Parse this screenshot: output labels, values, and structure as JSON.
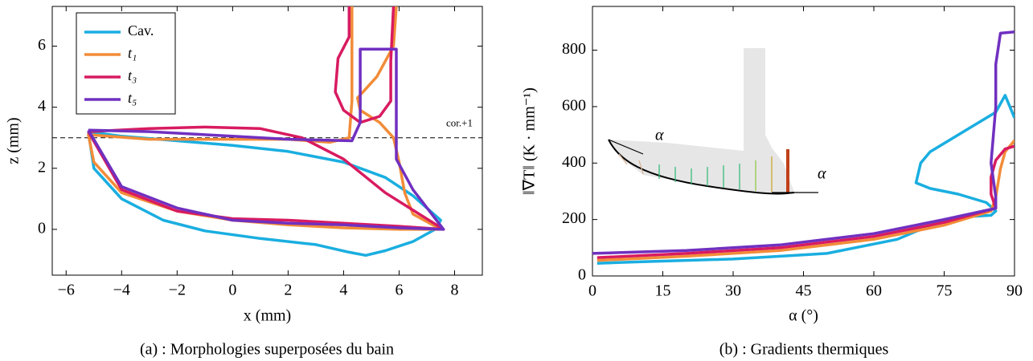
{
  "chart_data": [
    {
      "type": "line",
      "title": "(a) : Morphologies superposées du bain",
      "xlabel": "x (mm)",
      "ylabel": "z (mm)",
      "xlim": [
        -6.5,
        9
      ],
      "ylim": [
        -1.5,
        7.3
      ],
      "xticks": [
        {
          "value": -6,
          "label": "−6"
        },
        {
          "value": -4,
          "label": "−4"
        },
        {
          "value": -2,
          "label": "−2"
        },
        0,
        2,
        4,
        6,
        8
      ],
      "yticks": [
        0,
        2,
        4,
        6
      ],
      "legend": "upper left",
      "reference_line": {
        "y": 3,
        "label": "cor.+1"
      },
      "series": [
        {
          "name": "Cav.",
          "color": "#1aaee0",
          "x": [
            -5.2,
            -4,
            -2,
            0,
            2,
            4,
            5.5,
            6.5,
            7.5,
            7.3,
            6.5,
            5.5,
            4.8,
            4.2,
            3,
            1,
            -1,
            -2.5,
            -4,
            -5,
            -5.2
          ],
          "values": [
            3.2,
            3.05,
            2.9,
            2.75,
            2.55,
            2.2,
            1.7,
            1.1,
            0.3,
            0,
            -0.4,
            -0.7,
            -0.85,
            -0.75,
            -0.5,
            -0.3,
            -0.05,
            0.3,
            1.0,
            2.0,
            3.2
          ]
        },
        {
          "name": "t₁",
          "color": "#f28c38",
          "x": [
            4.3,
            4.3,
            4.2,
            3.5,
            2,
            0,
            -3,
            -5.2,
            -5,
            -4,
            -2,
            0,
            2,
            4,
            6,
            7.5,
            6.5,
            6.2,
            6,
            5.8,
            5.3,
            4.6,
            4.5,
            5.2,
            5.8,
            5.9
          ],
          "values": [
            7.3,
            4.2,
            3.0,
            2.85,
            2.95,
            2.95,
            2.95,
            3.1,
            2.2,
            1.2,
            0.6,
            0.3,
            0.15,
            0.05,
            0,
            0,
            0.5,
            1.2,
            2.2,
            3.0,
            3.5,
            3.9,
            4.3,
            5,
            6,
            7.3
          ]
        },
        {
          "name": "t₃",
          "color": "#d81b60",
          "x": [
            -5.2,
            -3,
            -1,
            1,
            2.5,
            4,
            5.5,
            7.6,
            6,
            4,
            2,
            0,
            -2,
            -4,
            -5.2,
            null,
            4.2,
            4.2,
            3.8,
            3.7,
            4.0,
            4.6,
            5.3,
            5.7,
            5.7,
            5.8
          ],
          "values": [
            3.2,
            3.3,
            3.35,
            3.3,
            3.0,
            2.3,
            1.2,
            0,
            0.1,
            0.2,
            0.3,
            0.35,
            0.6,
            1.3,
            3.2,
            null,
            7.3,
            6.3,
            5.6,
            4.5,
            3.9,
            3.5,
            3.7,
            4.2,
            5.5,
            7.3
          ]
        },
        {
          "name": "t₅",
          "color": "#7030c0",
          "x": [
            -5.2,
            -3,
            0,
            2,
            4.3,
            4.6,
            4.6,
            5.9,
            5.9,
            6.5,
            7.6,
            6,
            4,
            2,
            0,
            -2,
            -4,
            -5.2
          ],
          "values": [
            3.25,
            3.2,
            3.05,
            2.95,
            2.9,
            3.5,
            5.9,
            5.9,
            2.3,
            1.3,
            0,
            0.05,
            0.15,
            0.2,
            0.3,
            0.7,
            1.4,
            3.25
          ]
        }
      ]
    },
    {
      "type": "line",
      "title": "(b) : Gradients thermiques",
      "xlabel": "α (°)",
      "ylabel": "‖∇T‖ (K · mm⁻¹)",
      "xlim": [
        0,
        90
      ],
      "ylim": [
        0,
        955
      ],
      "xticks": [
        0,
        15,
        30,
        45,
        60,
        75,
        90
      ],
      "yticks": [
        0,
        200,
        400,
        600,
        800
      ],
      "inset_labels": [
        "α",
        "α"
      ],
      "series": [
        {
          "name": "Cav.",
          "color": "#1aaee0",
          "x": [
            1,
            10,
            30,
            50,
            65,
            75,
            80,
            85,
            86,
            84,
            78,
            72,
            69,
            70,
            72,
            80,
            86,
            88,
            89,
            90
          ],
          "values": [
            45,
            50,
            60,
            80,
            130,
            200,
            210,
            215,
            230,
            260,
            290,
            310,
            330,
            400,
            440,
            520,
            580,
            640,
            600,
            560
          ]
        },
        {
          "name": "t₁",
          "color": "#f28c38",
          "x": [
            1,
            20,
            40,
            60,
            75,
            85,
            86,
            87,
            88,
            90
          ],
          "values": [
            55,
            70,
            90,
            130,
            180,
            230,
            280,
            380,
            440,
            480
          ]
        },
        {
          "name": "t₃",
          "color": "#d81b60",
          "x": [
            1,
            20,
            40,
            60,
            75,
            86,
            85,
            85,
            86,
            88,
            90
          ],
          "values": [
            65,
            80,
            100,
            140,
            190,
            240,
            290,
            350,
            410,
            450,
            460
          ]
        },
        {
          "name": "t₅",
          "color": "#7030c0",
          "x": [
            0,
            20,
            40,
            60,
            75,
            86,
            86,
            85,
            86,
            86,
            87,
            90
          ],
          "values": [
            80,
            90,
            110,
            150,
            200,
            240,
            280,
            400,
            600,
            750,
            860,
            865
          ]
        }
      ]
    }
  ]
}
